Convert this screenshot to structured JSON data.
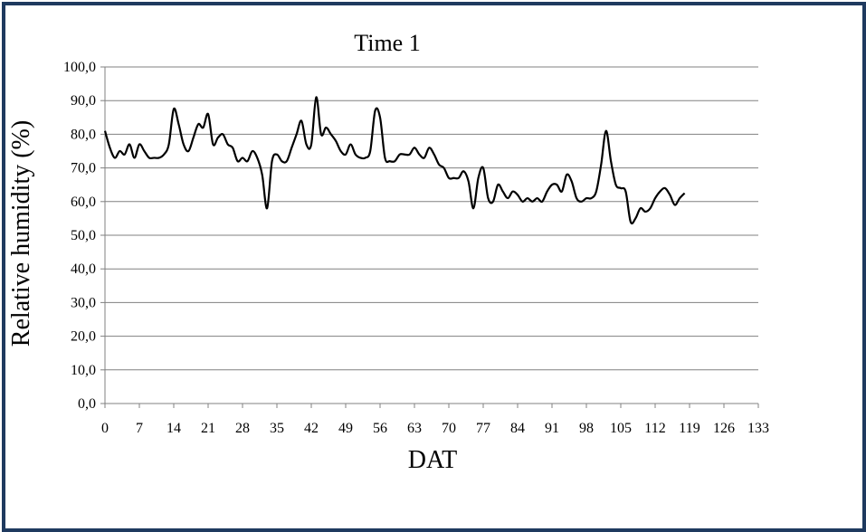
{
  "chart_data": {
    "type": "line",
    "title": "Time 1",
    "xlabel": "DAT",
    "ylabel": "Relative humidity (%)",
    "xlim": [
      0,
      133
    ],
    "ylim": [
      0,
      100
    ],
    "x_ticks": [
      "0",
      "7",
      "14",
      "21",
      "28",
      "35",
      "42",
      "49",
      "56",
      "63",
      "70",
      "77",
      "84",
      "91",
      "98",
      "105",
      "112",
      "119",
      "126",
      "133"
    ],
    "y_ticks": [
      "0,0",
      "10,0",
      "20,0",
      "30,0",
      "40,0",
      "50,0",
      "60,0",
      "70,0",
      "80,0",
      "90,0",
      "100,0"
    ],
    "grid": "horizontal",
    "series": [
      {
        "color": "#000000",
        "x": [
          0,
          1,
          2,
          3,
          4,
          5,
          6,
          7,
          8,
          9,
          10,
          11,
          12,
          13,
          14,
          15,
          16,
          17,
          18,
          19,
          20,
          21,
          22,
          23,
          24,
          25,
          26,
          27,
          28,
          29,
          30,
          31,
          32,
          33,
          34,
          35,
          36,
          37,
          38,
          39,
          40,
          41,
          42,
          43,
          44,
          45,
          46,
          47,
          48,
          49,
          50,
          51,
          52,
          53,
          54,
          55,
          56,
          57,
          58,
          59,
          60,
          61,
          62,
          63,
          64,
          65,
          66,
          67,
          68,
          69,
          70,
          71,
          72,
          73,
          74,
          75,
          76,
          77,
          78,
          79,
          80,
          81,
          82,
          83,
          84,
          85,
          86,
          87,
          88,
          89,
          90,
          91,
          92,
          93,
          94,
          95,
          96,
          97,
          98,
          99,
          100,
          101,
          102,
          103,
          104,
          105,
          106,
          107,
          108,
          109,
          110,
          111,
          112,
          113,
          114,
          115,
          116,
          117,
          118
        ],
        "y": [
          81,
          76,
          73,
          75,
          74,
          77,
          73,
          77,
          75,
          73,
          73,
          73,
          74,
          77,
          87.5,
          83,
          77,
          75,
          79,
          83,
          82,
          86,
          77,
          79,
          80,
          77,
          76,
          72,
          73,
          72,
          75,
          73,
          68,
          58,
          72,
          74,
          72,
          72,
          76,
          80,
          84,
          77,
          77,
          91,
          80,
          82,
          80,
          78,
          75,
          74,
          77,
          74,
          73,
          73,
          75,
          87,
          85,
          73,
          72,
          72,
          74,
          74,
          74,
          76,
          74,
          73,
          76,
          74,
          71,
          70,
          67,
          67,
          67,
          69,
          66,
          58,
          67,
          70,
          61,
          60,
          65,
          63,
          61,
          63,
          62,
          60,
          61,
          60,
          61,
          60,
          63,
          65,
          65,
          63,
          68,
          66,
          61,
          60,
          61,
          61,
          63,
          71,
          81,
          72,
          65,
          64,
          63,
          54,
          55,
          58,
          57,
          58,
          61,
          63,
          64,
          62,
          59,
          61,
          62.5
        ]
      }
    ]
  }
}
